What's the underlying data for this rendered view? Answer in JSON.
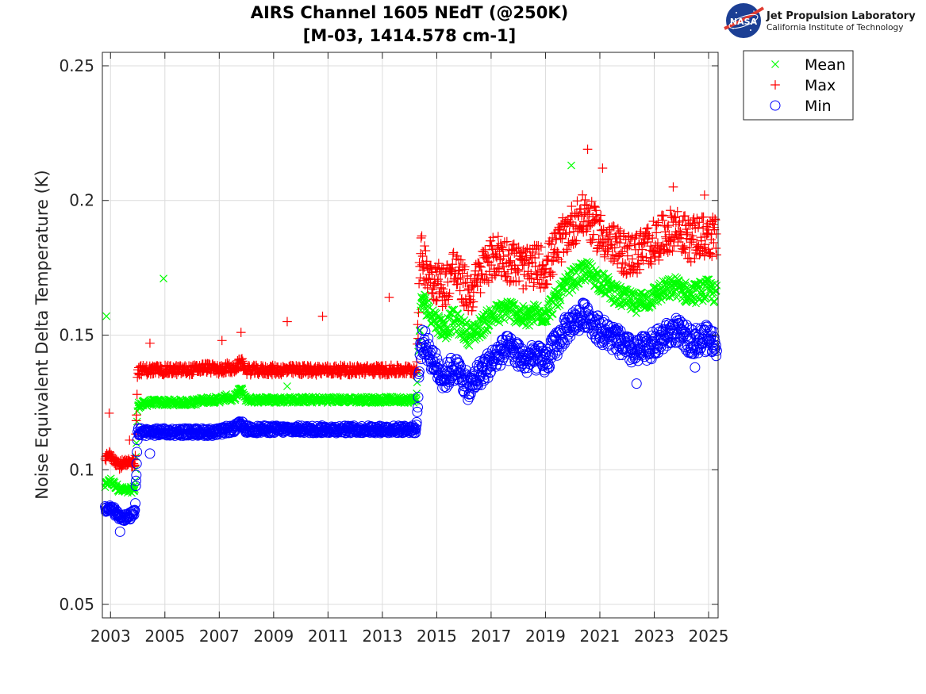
{
  "logo": {
    "badge_text": "NASA",
    "org_name": "Jet Propulsion Laboratory",
    "org_sub": "California Institute of Technology"
  },
  "chart_data": {
    "type": "scatter",
    "title": [
      "AIRS Channel 1605 NEdT (@250K)",
      "[M-03, 1414.578 cm-1]"
    ],
    "xlabel": "",
    "ylabel": "Noise Equivalent Delta Temperature (K)",
    "xlim": [
      2002.7,
      2025.35
    ],
    "ylim": [
      0.045,
      0.255
    ],
    "xticks": [
      2003,
      2005,
      2007,
      2009,
      2011,
      2013,
      2015,
      2017,
      2019,
      2021,
      2023,
      2025
    ],
    "xtick_labels": [
      "2003",
      "2005",
      "2007",
      "2009",
      "2011",
      "2013",
      "2015",
      "2017",
      "2019",
      "2021",
      "2023",
      "2025"
    ],
    "yticks": [
      0.05,
      0.1,
      0.15,
      0.2,
      0.25
    ],
    "ytick_labels": [
      "0.05",
      "0.1",
      "0.15",
      "0.2",
      "0.25"
    ],
    "grid": true,
    "legend_position": "outside-top-right",
    "series": [
      {
        "name": "Mean",
        "marker": "x",
        "color": "#00ff00",
        "x": [
          2002.8,
          2003.0,
          2003.3,
          2003.6,
          2003.9,
          2004.0,
          2004.5,
          2005.0,
          2005.5,
          2006.0,
          2006.5,
          2007.0,
          2007.3,
          2007.5,
          2007.8,
          2008.0,
          2008.5,
          2009.0,
          2009.5,
          2010.0,
          2010.5,
          2011.0,
          2011.5,
          2012.0,
          2012.5,
          2013.0,
          2013.5,
          2014.0,
          2014.25,
          2014.4,
          2014.5,
          2014.8,
          2015.0,
          2015.3,
          2015.6,
          2015.9,
          2016.2,
          2016.5,
          2016.8,
          2017.0,
          2017.3,
          2017.6,
          2018.0,
          2018.3,
          2018.6,
          2019.0,
          2019.3,
          2019.6,
          2019.9,
          2020.2,
          2020.5,
          2020.8,
          2021.0,
          2021.3,
          2021.6,
          2022.0,
          2022.3,
          2022.6,
          2022.9,
          2023.2,
          2023.5,
          2023.8,
          2024.0,
          2024.3,
          2024.6,
          2025.0,
          2025.3
        ],
        "y": [
          0.094,
          0.096,
          0.093,
          0.092,
          0.093,
          0.124,
          0.125,
          0.125,
          0.125,
          0.125,
          0.126,
          0.126,
          0.127,
          0.126,
          0.13,
          0.126,
          0.126,
          0.126,
          0.126,
          0.126,
          0.126,
          0.126,
          0.126,
          0.126,
          0.126,
          0.126,
          0.126,
          0.126,
          0.126,
          0.16,
          0.163,
          0.158,
          0.155,
          0.152,
          0.156,
          0.153,
          0.15,
          0.152,
          0.155,
          0.157,
          0.158,
          0.16,
          0.158,
          0.156,
          0.158,
          0.158,
          0.162,
          0.166,
          0.17,
          0.172,
          0.174,
          0.172,
          0.17,
          0.168,
          0.165,
          0.163,
          0.162,
          0.163,
          0.164,
          0.166,
          0.167,
          0.168,
          0.167,
          0.165,
          0.166,
          0.167,
          0.165
        ],
        "outliers": [
          [
            2002.85,
            0.157
          ],
          [
            2004.95,
            0.171
          ],
          [
            2009.5,
            0.131
          ],
          [
            2019.95,
            0.213
          ]
        ]
      },
      {
        "name": "Max",
        "marker": "+",
        "color": "#ff0000",
        "x": [
          2002.8,
          2003.0,
          2003.3,
          2003.6,
          2003.9,
          2004.0,
          2004.5,
          2005.0,
          2005.5,
          2006.0,
          2006.5,
          2007.0,
          2007.3,
          2007.5,
          2007.8,
          2008.0,
          2008.5,
          2009.0,
          2009.5,
          2010.0,
          2010.5,
          2011.0,
          2011.5,
          2012.0,
          2012.5,
          2013.0,
          2013.5,
          2014.0,
          2014.25,
          2014.4,
          2014.5,
          2014.8,
          2015.0,
          2015.3,
          2015.6,
          2015.9,
          2016.2,
          2016.5,
          2016.8,
          2017.0,
          2017.3,
          2017.6,
          2018.0,
          2018.3,
          2018.6,
          2019.0,
          2019.3,
          2019.6,
          2019.9,
          2020.2,
          2020.5,
          2020.8,
          2021.0,
          2021.3,
          2021.6,
          2022.0,
          2022.3,
          2022.6,
          2022.9,
          2023.2,
          2023.5,
          2023.8,
          2024.0,
          2024.3,
          2024.6,
          2025.0,
          2025.3
        ],
        "y": [
          0.104,
          0.106,
          0.102,
          0.102,
          0.103,
          0.137,
          0.137,
          0.137,
          0.137,
          0.137,
          0.138,
          0.137,
          0.138,
          0.137,
          0.14,
          0.137,
          0.137,
          0.137,
          0.137,
          0.137,
          0.137,
          0.137,
          0.137,
          0.137,
          0.137,
          0.137,
          0.137,
          0.137,
          0.137,
          0.18,
          0.178,
          0.172,
          0.17,
          0.168,
          0.175,
          0.17,
          0.165,
          0.17,
          0.177,
          0.178,
          0.18,
          0.178,
          0.176,
          0.174,
          0.176,
          0.175,
          0.18,
          0.185,
          0.19,
          0.193,
          0.195,
          0.19,
          0.188,
          0.185,
          0.182,
          0.18,
          0.18,
          0.182,
          0.184,
          0.186,
          0.188,
          0.19,
          0.188,
          0.185,
          0.186,
          0.187,
          0.186
        ],
        "outliers": [
          [
            2002.95,
            0.121
          ],
          [
            2003.7,
            0.111
          ],
          [
            2004.45,
            0.147
          ],
          [
            2007.1,
            0.148
          ],
          [
            2007.8,
            0.151
          ],
          [
            2009.5,
            0.155
          ],
          [
            2010.8,
            0.157
          ],
          [
            2013.25,
            0.164
          ],
          [
            2020.55,
            0.219
          ],
          [
            2021.1,
            0.212
          ],
          [
            2023.7,
            0.205
          ],
          [
            2024.85,
            0.202
          ]
        ]
      },
      {
        "name": "Min",
        "marker": "o",
        "color": "#0000ff",
        "x": [
          2002.8,
          2003.0,
          2003.3,
          2003.6,
          2003.9,
          2004.0,
          2004.5,
          2005.0,
          2005.5,
          2006.0,
          2006.5,
          2007.0,
          2007.3,
          2007.5,
          2007.8,
          2008.0,
          2008.5,
          2009.0,
          2009.5,
          2010.0,
          2010.5,
          2011.0,
          2011.5,
          2012.0,
          2012.5,
          2013.0,
          2013.5,
          2014.0,
          2014.25,
          2014.4,
          2014.5,
          2014.8,
          2015.0,
          2015.3,
          2015.6,
          2015.9,
          2016.2,
          2016.5,
          2016.8,
          2017.0,
          2017.3,
          2017.6,
          2018.0,
          2018.3,
          2018.6,
          2019.0,
          2019.3,
          2019.6,
          2019.9,
          2020.2,
          2020.5,
          2020.8,
          2021.0,
          2021.3,
          2021.6,
          2022.0,
          2022.3,
          2022.6,
          2022.9,
          2023.2,
          2023.5,
          2023.8,
          2024.0,
          2024.3,
          2024.6,
          2025.0,
          2025.3
        ],
        "y": [
          0.085,
          0.086,
          0.083,
          0.082,
          0.084,
          0.114,
          0.114,
          0.114,
          0.114,
          0.114,
          0.114,
          0.114,
          0.115,
          0.115,
          0.117,
          0.115,
          0.115,
          0.115,
          0.115,
          0.115,
          0.115,
          0.115,
          0.115,
          0.115,
          0.115,
          0.115,
          0.115,
          0.115,
          0.115,
          0.145,
          0.148,
          0.142,
          0.138,
          0.134,
          0.138,
          0.135,
          0.13,
          0.135,
          0.138,
          0.14,
          0.143,
          0.145,
          0.143,
          0.14,
          0.142,
          0.14,
          0.145,
          0.15,
          0.154,
          0.156,
          0.158,
          0.154,
          0.152,
          0.15,
          0.148,
          0.145,
          0.143,
          0.145,
          0.146,
          0.148,
          0.15,
          0.152,
          0.15,
          0.148,
          0.148,
          0.149,
          0.147
        ],
        "outliers": [
          [
            2003.35,
            0.077
          ],
          [
            2003.95,
            0.098
          ],
          [
            2004.45,
            0.106
          ],
          [
            2016.2,
            0.127
          ],
          [
            2022.35,
            0.132
          ],
          [
            2024.5,
            0.138
          ]
        ]
      }
    ]
  }
}
